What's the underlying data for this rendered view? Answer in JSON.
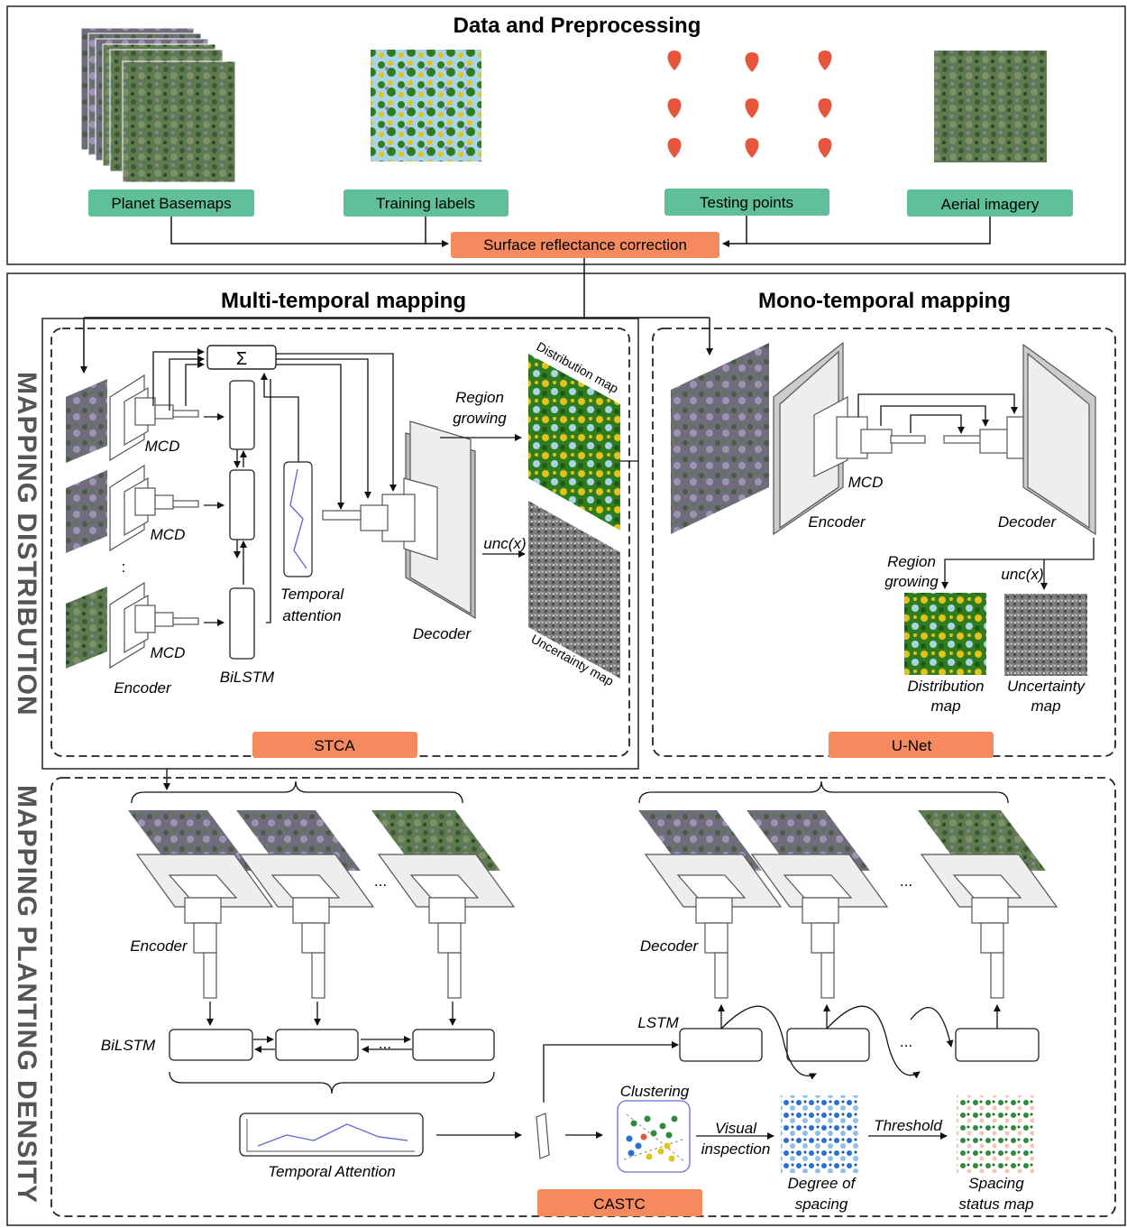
{
  "top": {
    "title": "Data and Preprocessing",
    "inputs": [
      "Planet Basemaps",
      "Training labels",
      "Testing points",
      "Aerial imagery"
    ],
    "correction": "Surface reflectance correction"
  },
  "side_labels": {
    "distribution": "MAPPING DISTRIBUTION",
    "density": "MAPPING PLANTING DENSITY"
  },
  "multi": {
    "title": "Multi-temporal mapping",
    "sum_symbol": "Σ",
    "mcd": "MCD",
    "ellipsis": ":",
    "encoder": "Encoder",
    "bilstm": "BiLSTM",
    "temporal_attention": [
      "Temporal",
      "attention"
    ],
    "decoder": "Decoder",
    "region_growing": [
      "Region",
      "growing"
    ],
    "unc": "unc(x)",
    "distribution_map": "Distribution map",
    "uncertainty_map": "Uncertainty map",
    "model": "STCA"
  },
  "mono": {
    "title": "Mono-temporal mapping",
    "mcd": "MCD",
    "encoder": "Encoder",
    "decoder": "Decoder",
    "region_growing": [
      "Region",
      "growing"
    ],
    "unc": "unc(x)",
    "distribution_map": [
      "Distribution",
      "map"
    ],
    "uncertainty_map": [
      "Uncertainty",
      "map"
    ],
    "model": "U-Net"
  },
  "density": {
    "encoder": "Encoder",
    "decoder": "Decoder",
    "bilstm": "BiLSTM",
    "lstm": "LSTM",
    "ellipsis": "...",
    "temporal_attention": "Temporal Attention",
    "clustering": "Clustering",
    "visual_inspection": [
      "Visual",
      "inspection"
    ],
    "degree_of_spacing": [
      "Degree of",
      "spacing"
    ],
    "threshold": "Threshold",
    "spacing_status_map": [
      "Spacing",
      "status map"
    ],
    "model": "CASTC"
  },
  "colors": {
    "input_label_bg": "#5fbf9b",
    "model_label_bg": "#f58a5e",
    "satellite": "#5d7a50",
    "label_bg": "#a9d5e6",
    "label_green": "#2f7d1f",
    "label_yellow": "#e3c21a",
    "pin": "#e8553d",
    "attention_line": "#6b6bd6"
  },
  "icons": [
    "location-pin-icon",
    "satellite-tile-icon",
    "sum-icon",
    "attention-chart-icon",
    "cluster-plot-icon"
  ]
}
